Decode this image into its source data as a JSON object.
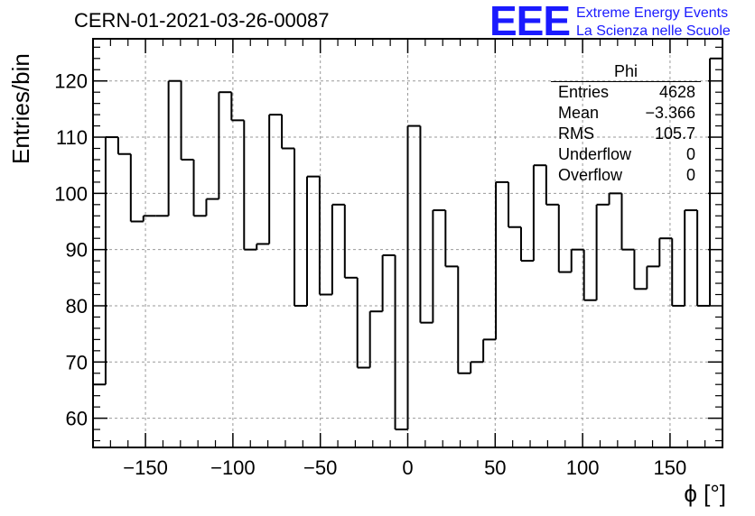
{
  "header": {
    "title": "CERN-01-2021-03-26-00087",
    "logo_text": "EEE",
    "logo_line1": "Extreme Energy Events",
    "logo_line2": "La Scienza nelle Scuole"
  },
  "stats": {
    "title": "Phi",
    "rows": [
      {
        "label": "Entries",
        "value": "4628"
      },
      {
        "label": "Mean",
        "value": "−3.366"
      },
      {
        "label": "RMS",
        "value": "105.7"
      },
      {
        "label": "Underflow",
        "value": "0"
      },
      {
        "label": "Overflow",
        "value": "0"
      }
    ]
  },
  "colors": {
    "line": "#000000",
    "grid": "#999999",
    "accent": "#1a1aff"
  },
  "chart_data": {
    "type": "bar",
    "histogram": true,
    "title": "CERN-01-2021-03-26-00087",
    "xlabel": "ϕ [°]",
    "ylabel": "Entries/bin",
    "xlim": [
      -180,
      180
    ],
    "ylim": [
      54.8,
      127.5
    ],
    "bin_width": 7.2,
    "x_ticks": [
      -150,
      -100,
      -50,
      0,
      50,
      100,
      150
    ],
    "x_tick_labels": [
      "−150",
      "−100",
      "−50",
      "0",
      "50",
      "100",
      "150"
    ],
    "y_ticks": [
      60,
      70,
      80,
      90,
      100,
      110,
      120
    ],
    "y_tick_labels": [
      "60",
      "70",
      "80",
      "90",
      "100",
      "110",
      "120"
    ],
    "grid": true,
    "values": [
      66,
      110,
      107,
      95,
      96,
      96,
      120,
      106,
      96,
      99,
      118,
      113,
      90,
      91,
      114,
      108,
      80,
      103,
      82,
      98,
      85,
      69,
      79,
      89,
      58,
      112,
      77,
      97,
      87,
      68,
      70,
      74,
      102,
      94,
      88,
      105,
      98,
      86,
      90,
      81,
      98,
      100,
      90,
      83,
      87,
      92,
      80,
      97,
      80,
      124
    ]
  }
}
